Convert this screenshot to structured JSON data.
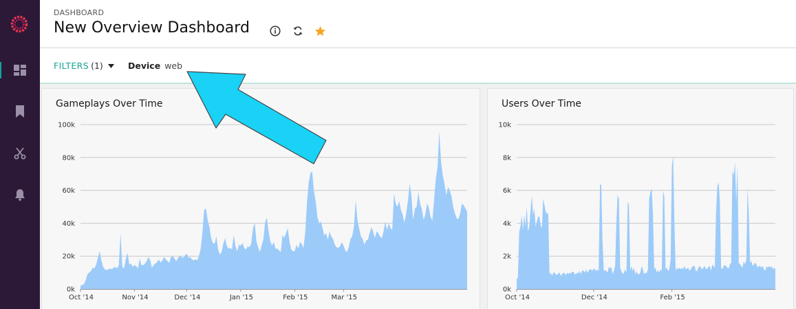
{
  "header": {
    "breadcrumb": "DASHBOARD",
    "title": "New Overview Dashboard"
  },
  "sidebar": {
    "items": [
      {
        "icon": "dashboard-icon",
        "active": true
      },
      {
        "icon": "bookmark-icon",
        "active": false
      },
      {
        "icon": "scissors-icon",
        "active": false
      },
      {
        "icon": "bell-icon",
        "active": false
      }
    ]
  },
  "filters": {
    "label": "FILTERS",
    "count": "(1)",
    "chip_key": "Device",
    "chip_value": "web"
  },
  "colors": {
    "sidebar_bg": "#2b1937",
    "accent": "#16a394",
    "area_fill": "#9ccbf9",
    "star": "#f5a623",
    "annotation_arrow": "#19d2f6"
  },
  "chart_data": [
    {
      "type": "area",
      "title": "Gameplays Over Time",
      "ylim": [
        0,
        100000
      ],
      "yticks": [
        0,
        20000,
        40000,
        60000,
        80000,
        100000
      ],
      "ytick_labels": [
        "0k",
        "20k",
        "40k",
        "60k",
        "80k",
        "100k"
      ],
      "xtick_labels": [
        "Oct '14",
        "Nov '14",
        "Dec '14",
        "Jan '15",
        "Feb '15",
        "Mar '15"
      ],
      "x_start": "2014-10-01",
      "grid": true,
      "values": [
        2000,
        2500,
        3000,
        5500,
        9000,
        10000,
        11000,
        13000,
        12500,
        15000,
        19000,
        23000,
        17500,
        13500,
        12000,
        11500,
        12000,
        12500,
        12000,
        13000,
        13500,
        12500,
        14500,
        34000,
        13500,
        12500,
        18000,
        22000,
        15000,
        15500,
        13500,
        14500,
        14000,
        12500,
        18500,
        14500,
        14500,
        15500,
        17000,
        19500,
        17500,
        13000,
        14500,
        15500,
        16500,
        18000,
        16000,
        17500,
        19500,
        18000,
        17000,
        16000,
        19500,
        20000,
        18500,
        17000,
        19000,
        20000,
        19500,
        19000,
        20500,
        21500,
        19000,
        19500,
        18000,
        17500,
        18000,
        17500,
        20000,
        24500,
        34000,
        48000,
        49000,
        42000,
        38000,
        31000,
        28000,
        27500,
        32000,
        24000,
        21000,
        22500,
        27500,
        31000,
        26500,
        24500,
        25000,
        24000,
        33000,
        26000,
        23000,
        27000,
        26500,
        28000,
        25000,
        24000,
        26000,
        25500,
        27500,
        36500,
        40500,
        29000,
        25500,
        22500,
        26500,
        30000,
        40500,
        43500,
        35000,
        29000,
        26500,
        28500,
        24500,
        24500,
        23500,
        22500,
        33000,
        31000,
        34000,
        37000,
        29000,
        24000,
        23000,
        23000,
        27000,
        24500,
        28500,
        27500,
        25000,
        34000,
        52000,
        64500,
        70500,
        71500,
        60000,
        53500,
        44000,
        40000,
        41000,
        37000,
        32500,
        34000,
        30000,
        35000,
        32000,
        30500,
        27000,
        25500,
        25000,
        26000,
        28500,
        26500,
        23500,
        22500,
        25500,
        30500,
        32000,
        38000,
        54000,
        42000,
        37000,
        32000,
        30500,
        27000,
        29500,
        30000,
        34000,
        37500,
        35000,
        31000,
        35000,
        34000,
        32000,
        31000,
        35000,
        41000,
        36000,
        40000,
        37000,
        36000,
        58000,
        52000,
        50000,
        53500,
        48000,
        45000,
        40500,
        46000,
        53500,
        64000,
        57000,
        42000,
        49000,
        50000,
        59000,
        52000,
        48500,
        42000,
        45500,
        52000,
        49500,
        44000,
        41500,
        54000,
        67000,
        74000,
        96000,
        78000,
        69000,
        64000,
        57000,
        62000,
        60000,
        56500,
        50000,
        46000,
        43000,
        42500,
        46000,
        52000,
        51000,
        49000,
        47000
      ]
    },
    {
      "type": "area",
      "title": "Users Over Time",
      "ylim": [
        0,
        10000
      ],
      "yticks": [
        0,
        2000,
        4000,
        6000,
        8000,
        10000
      ],
      "ytick_labels": [
        "0k",
        "2k",
        "4k",
        "6k",
        "8k",
        "10k"
      ],
      "xtick_labels": [
        "Oct '14",
        "Dec '14",
        "Feb '15"
      ],
      "x_start": "2014-10-01",
      "grid": true,
      "values": [
        600,
        700,
        3500,
        3800,
        4500,
        3600,
        4500,
        3800,
        5000,
        3500,
        3800,
        4800,
        5700,
        4500,
        4900,
        3800,
        4100,
        4400,
        4400,
        3900,
        3700,
        5500,
        5100,
        4700,
        4600,
        4600,
        900,
        1000,
        800,
        1000,
        1000,
        900,
        850,
        950,
        1000,
        800,
        900,
        1000,
        950,
        850,
        1000,
        900,
        1000,
        950,
        1050,
        1050,
        900,
        900,
        1000,
        950,
        1100,
        900,
        1150,
        1100,
        1000,
        1200,
        1000,
        1100,
        1200,
        1200,
        1100,
        1250,
        1200,
        1100,
        1200,
        1100,
        6300,
        6400,
        3000,
        1100,
        1150,
        1100,
        1000,
        1350,
        1250,
        1350,
        900,
        1100,
        1400,
        4000,
        5700,
        5500,
        1300,
        1100,
        900,
        1000,
        1200,
        1000,
        5300,
        5100,
        1100,
        1400,
        1100,
        1300,
        900,
        1100,
        900,
        900,
        1000,
        1400,
        1200,
        900,
        1000,
        950,
        1200,
        5500,
        5900,
        6100,
        4500,
        1200,
        1300,
        1000,
        1150,
        1000,
        1200,
        1100,
        6000,
        5600,
        1200,
        1300,
        1100,
        1200,
        1800,
        7500,
        8100,
        4000,
        1100,
        1300,
        1200,
        1300,
        1200,
        1300,
        1200,
        1400,
        1200,
        1250,
        1300,
        1100,
        1200,
        1350,
        1400,
        1400,
        1100,
        1100,
        1300,
        1400,
        1300,
        1200,
        1300,
        1400,
        1200,
        1250,
        1350,
        1400,
        1100,
        1500,
        1400,
        1300,
        4700,
        6200,
        6500,
        5400,
        1300,
        1200,
        1400,
        1450,
        1400,
        1300,
        1250,
        1500,
        1600,
        7200,
        6900,
        7700,
        5300,
        7600,
        1600,
        1500,
        1400,
        1300,
        1700,
        1500,
        1800,
        6200,
        4500,
        1600,
        1700,
        1400,
        1500,
        1600,
        1500,
        1300,
        1400,
        1400,
        1300,
        1400,
        1200,
        1100,
        1400,
        1300,
        1400,
        1300,
        1400,
        1200,
        1300,
        1200
      ]
    }
  ]
}
